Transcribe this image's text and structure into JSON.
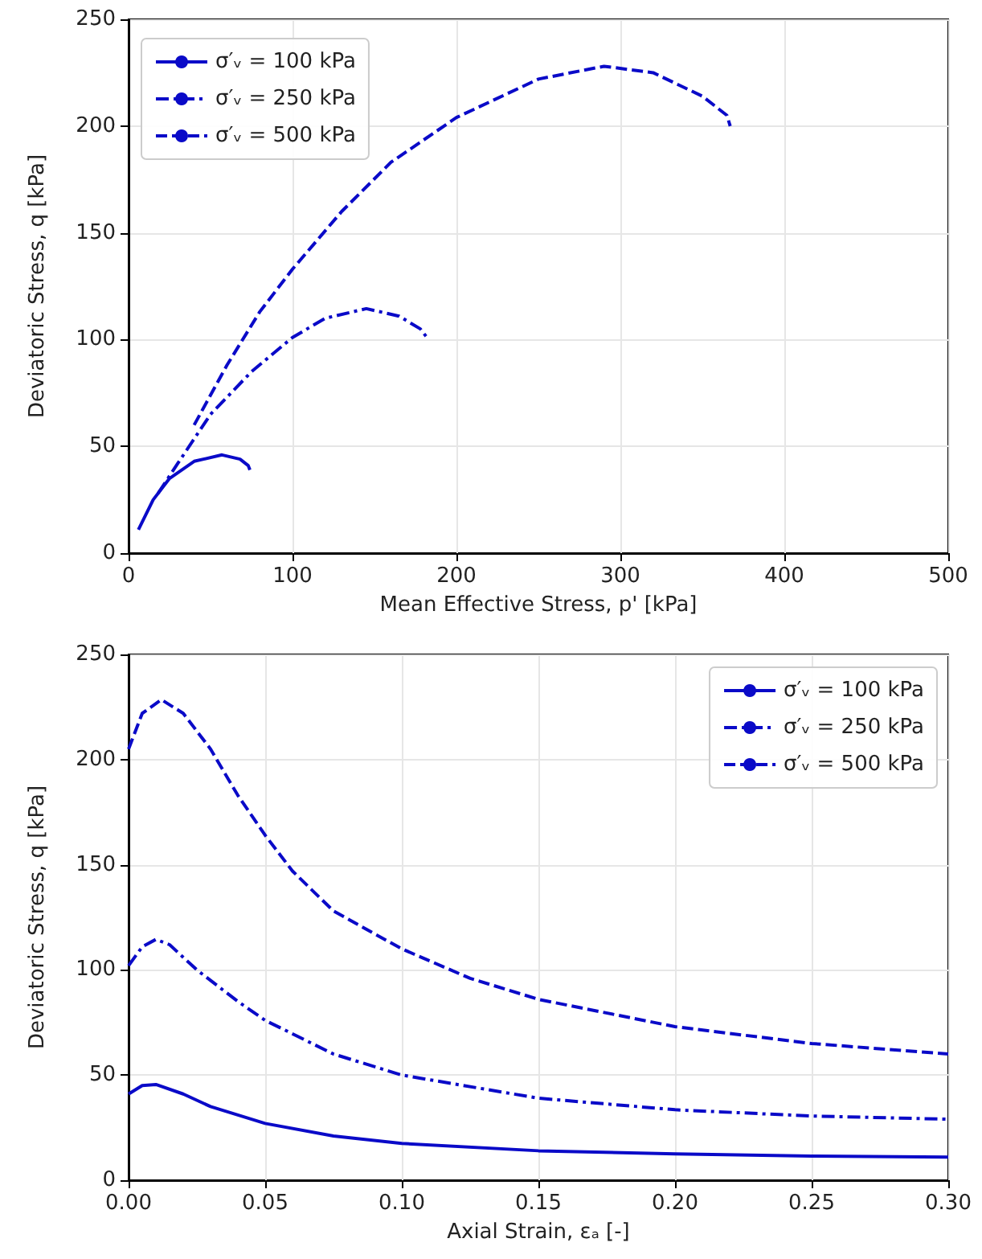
{
  "chart_data": [
    {
      "type": "line",
      "xlabel": "Mean Effective Stress, p' [kPa]",
      "ylabel": "Deviatoric Stress, q [kPa]",
      "xlim": [
        0,
        500
      ],
      "ylim": [
        0,
        250
      ],
      "xticks": [
        0,
        100,
        200,
        300,
        400,
        500
      ],
      "yticks": [
        0,
        50,
        100,
        150,
        200,
        250
      ],
      "grid": true,
      "legend": "top left",
      "series": [
        {
          "name": "σ′ᵥ = 100 kPa",
          "color": "#0a0ac8",
          "line_style": "solid",
          "x": [
            6,
            15,
            25,
            40,
            57,
            68,
            73,
            74
          ],
          "values": [
            11,
            25,
            35,
            43,
            46,
            44,
            41,
            39
          ]
        },
        {
          "name": "σ′ᵥ = 250 kPa",
          "color": "#0a0ac8",
          "line_style": "dashdot",
          "x": [
            18,
            30,
            50,
            75,
            100,
            120,
            145,
            165,
            178,
            183
          ],
          "values": [
            28,
            42,
            65,
            85,
            101,
            110,
            114.5,
            111,
            105,
            100
          ]
        },
        {
          "name": "σ′ᵥ = 500 kPa",
          "color": "#0a0ac8",
          "line_style": "dashed",
          "x": [
            40,
            60,
            80,
            100,
            130,
            160,
            200,
            250,
            290,
            320,
            350,
            365,
            367
          ],
          "values": [
            60,
            88,
            113,
            133,
            160,
            183,
            204,
            222,
            228,
            225,
            214,
            205,
            200
          ]
        }
      ]
    },
    {
      "type": "line",
      "xlabel": "Axial Strain, εₐ [-]",
      "ylabel": "Deviatoric Stress, q [kPa]",
      "xlim": [
        0,
        0.3
      ],
      "ylim": [
        0,
        250
      ],
      "xticks": [
        {
          "value": 0,
          "label": "0.00"
        },
        {
          "value": 0.05,
          "label": "0.05"
        },
        {
          "value": 0.1,
          "label": "0.10"
        },
        {
          "value": 0.15,
          "label": "0.15"
        },
        {
          "value": 0.2,
          "label": "0.20"
        },
        {
          "value": 0.25,
          "label": "0.25"
        },
        {
          "value": 0.3,
          "label": "0.30"
        }
      ],
      "yticks": [
        0,
        50,
        100,
        150,
        200,
        250
      ],
      "grid": true,
      "legend": "top right",
      "series": [
        {
          "name": "σ′ᵥ = 100 kPa",
          "color": "#0a0ac8",
          "line_style": "solid",
          "x": [
            0,
            0.005,
            0.01,
            0.02,
            0.03,
            0.05,
            0.075,
            0.1,
            0.15,
            0.2,
            0.25,
            0.3
          ],
          "values": [
            41,
            45,
            45.5,
            41,
            35,
            27,
            21,
            17.5,
            14,
            12.5,
            11.5,
            11
          ]
        },
        {
          "name": "σ′ᵥ = 250 kPa",
          "color": "#0a0ac8",
          "line_style": "dashdot",
          "x": [
            0,
            0.005,
            0.01,
            0.015,
            0.025,
            0.04,
            0.05,
            0.075,
            0.1,
            0.15,
            0.2,
            0.25,
            0.3
          ],
          "values": [
            102,
            111,
            114.5,
            112,
            100,
            85,
            76,
            60,
            50,
            39,
            33.5,
            30.5,
            29
          ]
        },
        {
          "name": "σ′ᵥ = 500 kPa",
          "color": "#0a0ac8",
          "line_style": "dashed",
          "x": [
            0,
            0.005,
            0.012,
            0.02,
            0.03,
            0.04,
            0.05,
            0.06,
            0.075,
            0.1,
            0.125,
            0.15,
            0.2,
            0.25,
            0.3
          ],
          "values": [
            205,
            222,
            228.5,
            222,
            205,
            183,
            164,
            147,
            128,
            110,
            96,
            86,
            73,
            65,
            60
          ]
        }
      ]
    }
  ]
}
